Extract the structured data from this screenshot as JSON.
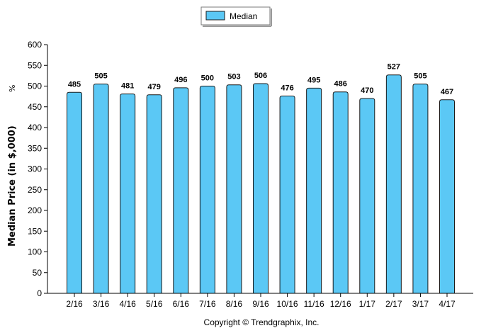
{
  "chart_data": {
    "type": "bar",
    "categories": [
      "2/16",
      "3/16",
      "4/16",
      "5/16",
      "6/16",
      "7/16",
      "8/16",
      "9/16",
      "10/16",
      "11/16",
      "12/16",
      "1/17",
      "2/17",
      "3/17",
      "4/17"
    ],
    "series": [
      {
        "name": "Median",
        "values": [
          485,
          505,
          481,
          479,
          496,
          500,
          503,
          506,
          476,
          495,
          486,
          470,
          527,
          505,
          467
        ]
      }
    ],
    "ylabel": "Median Price (in $,000)",
    "ylabel_unit": "%",
    "ylim": [
      0,
      600
    ],
    "yticks": [
      0,
      50,
      100,
      150,
      200,
      250,
      300,
      350,
      400,
      450,
      500,
      550,
      600
    ],
    "legend_position": "top-center",
    "grid": false,
    "colors": {
      "bar_fill": "#5bc8f5",
      "bar_stroke": "#1a1a1a"
    }
  },
  "footer": {
    "copyright": "Copyright © Trendgraphix, Inc."
  }
}
